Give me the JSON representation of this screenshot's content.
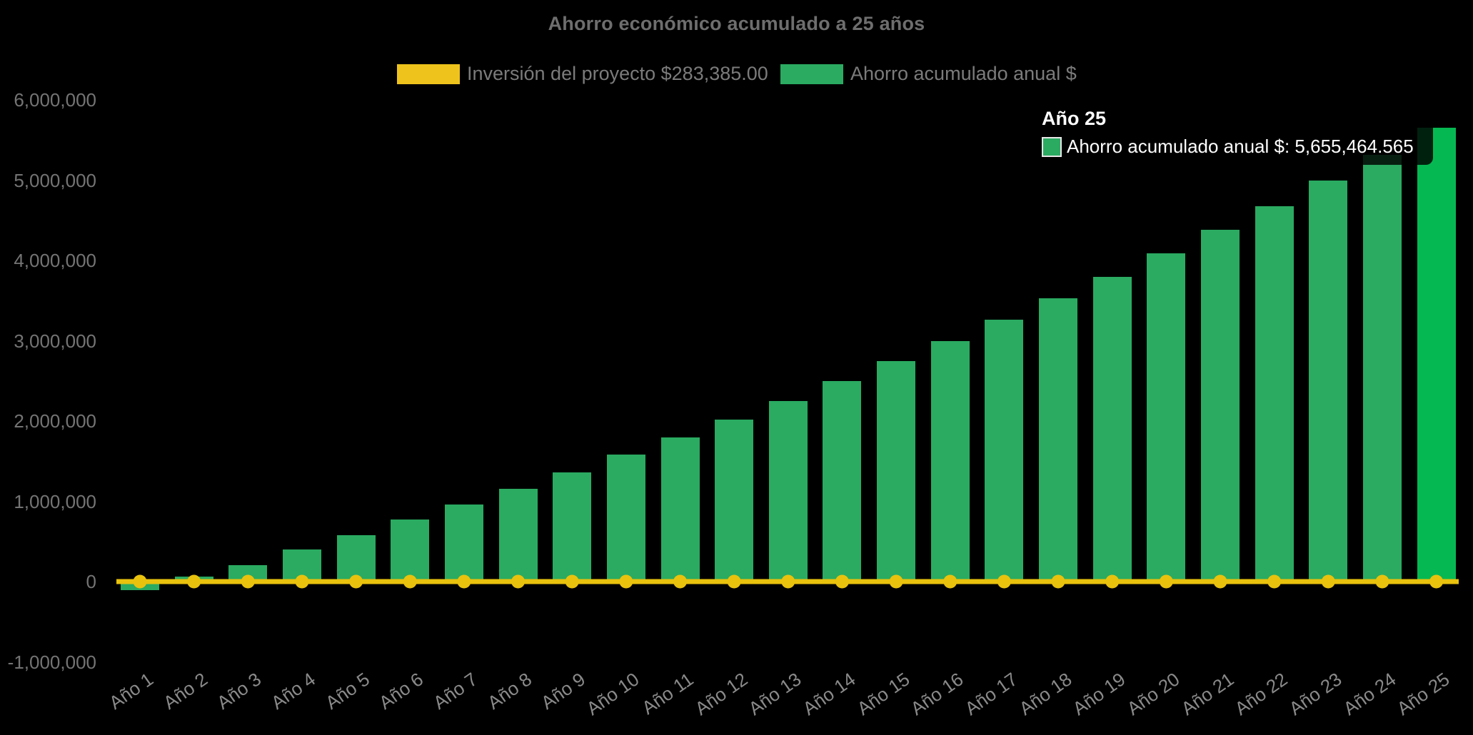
{
  "title": "Ahorro económico acumulado a 25 años",
  "legend": {
    "items": [
      {
        "label": "Inversión del proyecto $283,385.00",
        "color": "#eec31b"
      },
      {
        "label": "Ahorro acumulado anual $",
        "color": "#2aab61"
      }
    ]
  },
  "tooltip": {
    "title": "Año 25",
    "label_text": "Ahorro acumulado anual $: 5,655,464.565",
    "swatch_color": "#2aab61",
    "swatch_border": "#e6e6e6"
  },
  "y_axis": {
    "tick_labels": [
      "6,000,000",
      "5,000,000",
      "4,000,000",
      "3,000,000",
      "2,000,000",
      "1,000,000",
      "0",
      "-1,000,000"
    ],
    "tick_values": [
      6000000,
      5000000,
      4000000,
      3000000,
      2000000,
      1000000,
      0,
      -1000000
    ]
  },
  "chart_data": {
    "type": "bar",
    "title": "Ahorro económico acumulado a 25 años",
    "background": "#000000",
    "grid": false,
    "legend_position": "top",
    "ylim": [
      -1000000,
      6000000
    ],
    "ytick_step": 1000000,
    "categories": [
      "Año 1",
      "Año 2",
      "Año 3",
      "Año 4",
      "Año 5",
      "Año 6",
      "Año 7",
      "Año 8",
      "Año 9",
      "Año 10",
      "Año 11",
      "Año 12",
      "Año 13",
      "Año 14",
      "Año 15",
      "Año 16",
      "Año 17",
      "Año 18",
      "Año 19",
      "Año 20",
      "Año 21",
      "Año 22",
      "Año 23",
      "Año 24",
      "Año 25"
    ],
    "series": [
      {
        "name": "Inversión del proyecto $283,385.00",
        "type": "line",
        "color": "#e9c20d",
        "investment_amount": 283385.0,
        "values": [
          0,
          0,
          0,
          0,
          0,
          0,
          0,
          0,
          0,
          0,
          0,
          0,
          0,
          0,
          0,
          0,
          0,
          0,
          0,
          0,
          0,
          0,
          0,
          0,
          0
        ]
      },
      {
        "name": "Ahorro acumulado anual $",
        "type": "bar",
        "color": "#2aab61",
        "values": [
          -110000,
          65000,
          205000,
          400000,
          580000,
          770000,
          960000,
          1160000,
          1360000,
          1580000,
          1800000,
          2020000,
          2250000,
          2500000,
          2750000,
          3000000,
          3260000,
          3530000,
          3800000,
          4090000,
          4380000,
          4680000,
          5000000,
          5320000,
          5655464.565
        ]
      }
    ],
    "highlight": {
      "index": 24,
      "color": "#06b852",
      "tooltip_value": 5655464.565
    }
  }
}
